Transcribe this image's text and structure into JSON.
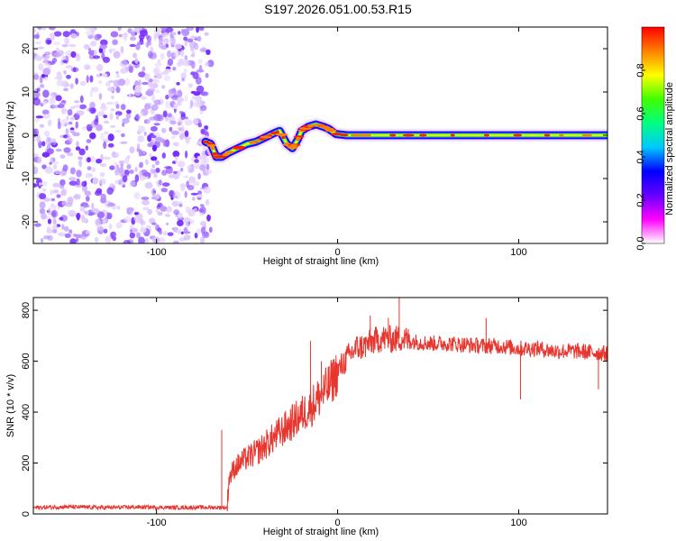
{
  "title": "S197.2026.051.00.53.R15",
  "chart_data": [
    {
      "type": "heatmap",
      "name": "spectrogram",
      "xlabel": "Height of straight line (km)",
      "ylabel": "Frequency (Hz)",
      "xlim": [
        -168,
        149
      ],
      "ylim": [
        -25,
        25
      ],
      "xticks": [
        -100,
        0,
        100
      ],
      "yticks": [
        -20,
        -10,
        0,
        10,
        20
      ],
      "noise_region_x": [
        -168,
        -70
      ],
      "signal_start_x": -73,
      "signal_track": {
        "x": [
          -73,
          -70,
          -67,
          -64,
          -60,
          -55,
          -50,
          -45,
          -40,
          -35,
          -32,
          -28,
          -25,
          -22,
          -20,
          -16,
          -12,
          -8,
          -5,
          -1,
          5,
          20,
          60,
          100,
          149
        ],
        "y": [
          -1.5,
          -2,
          -5,
          -5,
          -4,
          -3,
          -2,
          -1.5,
          -0.5,
          0.5,
          1,
          -2,
          -3,
          -1,
          1,
          2,
          2.5,
          2,
          1.5,
          0.3,
          0,
          0,
          0,
          0,
          0
        ]
      },
      "colorbar": {
        "label": "Normalized spectral amplitude",
        "ticks": [
          0.0,
          0.2,
          0.4,
          0.6,
          0.8
        ],
        "tick_labels": [
          "0.0",
          "0.2",
          "0.4",
          "0.6",
          "0.8"
        ],
        "range": [
          0,
          1
        ],
        "colormap": [
          "#ffffff",
          "#ff00ff",
          "#6600ff",
          "#0000ff",
          "#00c8ff",
          "#00ff80",
          "#40ff00",
          "#ffff00",
          "#ff8000",
          "#ff0000"
        ]
      }
    },
    {
      "type": "line",
      "name": "snr",
      "xlabel": "Height of straight line (km)",
      "ylabel": "SNR (10 * v/v)",
      "xlim": [
        -168,
        149
      ],
      "ylim": [
        0,
        850
      ],
      "xticks": [
        -100,
        0,
        100
      ],
      "yticks": [
        0,
        200,
        400,
        600,
        800
      ],
      "color": "#e8352e",
      "series": {
        "x": [
          -168,
          -150,
          -130,
          -110,
          -90,
          -70,
          -61,
          -60,
          -57,
          -54,
          -50,
          -45,
          -40,
          -35,
          -30,
          -25,
          -20,
          -15,
          -10,
          -5,
          0,
          5,
          10,
          15,
          20,
          25,
          30,
          35,
          40,
          50,
          60,
          70,
          80,
          90,
          100,
          110,
          120,
          130,
          140,
          149
        ],
        "y": [
          25,
          28,
          25,
          27,
          25,
          26,
          25,
          140,
          180,
          200,
          220,
          240,
          270,
          300,
          330,
          360,
          390,
          420,
          460,
          500,
          560,
          610,
          650,
          660,
          680,
          690,
          685,
          690,
          680,
          670,
          670,
          665,
          660,
          660,
          650,
          650,
          640,
          640,
          635,
          630
        ]
      },
      "spikes": [
        {
          "x": -64,
          "y": 330
        },
        {
          "x": -15,
          "y": 680
        },
        {
          "x": -9,
          "y": 600
        },
        {
          "x": 18,
          "y": 780
        },
        {
          "x": 28,
          "y": 770
        },
        {
          "x": 34,
          "y": 850
        },
        {
          "x": 82,
          "y": 770
        },
        {
          "x": 101,
          "y": 450
        },
        {
          "x": 144,
          "y": 490
        }
      ]
    }
  ]
}
